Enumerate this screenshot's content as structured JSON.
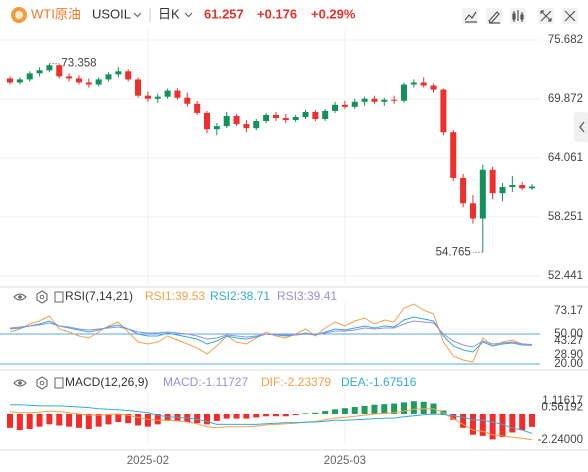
{
  "header": {
    "name": "WTI原油",
    "symbol": "USOIL",
    "period": "日K",
    "change": "+0.176",
    "change_pct": "+0.29%"
  },
  "chart_data": [
    {
      "type": "candlestick",
      "categories": [
        null,
        null,
        null,
        null,
        null,
        null,
        null,
        null,
        null,
        null,
        null,
        null,
        null,
        null,
        "2025-02",
        null,
        null,
        null,
        null,
        null,
        null,
        null,
        null,
        null,
        null,
        null,
        null,
        null,
        null,
        null,
        null,
        null,
        null,
        null,
        "2025-03",
        null,
        null,
        null,
        null,
        null,
        null,
        null,
        null,
        null,
        null,
        null,
        null,
        null,
        null,
        null,
        null,
        null,
        null,
        null
      ],
      "open": [
        71.9,
        71.5,
        71.8,
        72.4,
        72.7,
        73.2,
        72.1,
        71.9,
        71.5,
        71.3,
        71.8,
        72.3,
        72.6,
        71.8,
        70.2,
        69.9,
        70.1,
        70.7,
        70.0,
        69.4,
        68.5,
        66.9,
        67.2,
        68.2,
        67.4,
        67.0,
        67.7,
        68.3,
        68.0,
        67.8,
        68.1,
        68.6,
        67.9,
        68.7,
        69.3,
        69.1,
        69.6,
        69.9,
        69.6,
        69.8,
        69.7,
        71.3,
        71.5,
        71.2,
        70.8,
        66.6,
        62.1,
        59.6,
        58.1,
        62.9,
        60.6,
        61.2,
        61.4,
        61.081
      ],
      "high": [
        72.1,
        72.0,
        72.6,
        73.0,
        73.358,
        73.3,
        72.4,
        72.2,
        71.9,
        72.0,
        72.5,
        73.0,
        72.8,
        72.0,
        70.6,
        70.4,
        70.9,
        70.9,
        70.5,
        69.7,
        68.7,
        67.5,
        68.6,
        68.4,
        67.8,
        67.9,
        68.5,
        68.6,
        68.4,
        68.3,
        68.8,
        68.8,
        68.9,
        69.6,
        69.7,
        69.9,
        70.1,
        70.2,
        70.0,
        70.2,
        71.5,
        71.8,
        72.0,
        71.4,
        70.9,
        66.8,
        62.5,
        60.4,
        63.4,
        63.2,
        61.6,
        62.3,
        61.7,
        61.5
      ],
      "low": [
        71.3,
        71.3,
        71.6,
        72.1,
        72.5,
        71.9,
        71.6,
        71.3,
        71.0,
        71.1,
        71.6,
        72.0,
        71.6,
        70.0,
        69.6,
        69.5,
        69.9,
        69.8,
        69.1,
        68.3,
        66.5,
        66.3,
        67.0,
        67.2,
        66.6,
        66.8,
        67.5,
        67.7,
        67.5,
        67.6,
        67.9,
        67.7,
        67.7,
        68.5,
        68.9,
        68.9,
        69.2,
        69.4,
        69.2,
        69.4,
        69.5,
        71.0,
        71.0,
        70.5,
        66.3,
        61.8,
        59.2,
        57.6,
        54.765,
        60.0,
        59.8,
        60.7,
        60.9,
        60.9
      ],
      "close": [
        71.5,
        71.8,
        72.4,
        72.7,
        73.2,
        72.1,
        71.9,
        71.5,
        71.3,
        71.8,
        72.3,
        72.6,
        71.8,
        70.2,
        69.9,
        70.1,
        70.7,
        70.0,
        69.4,
        68.5,
        66.9,
        67.2,
        68.2,
        67.4,
        67.0,
        67.7,
        68.3,
        68.0,
        67.8,
        68.1,
        68.6,
        67.9,
        68.7,
        69.3,
        69.1,
        69.6,
        69.9,
        69.6,
        69.8,
        69.7,
        71.3,
        71.5,
        71.2,
        70.8,
        66.6,
        62.1,
        59.6,
        58.1,
        62.9,
        60.6,
        61.2,
        61.4,
        61.081,
        61.257
      ],
      "up_color": "#14915a",
      "down_color": "#ee2f2b",
      "ylim": [
        51.55,
        76.67
      ],
      "yticks": [
        75.682,
        69.872,
        64.061,
        58.251,
        52.441
      ],
      "grid": true
    },
    {
      "type": "line",
      "title": "RSI(7,14,21)",
      "series": [
        {
          "name": "RSI1:39.53",
          "color": "#f5a04a",
          "values": [
            52,
            55,
            60,
            63,
            68,
            55,
            52,
            48,
            46,
            52,
            58,
            62,
            52,
            42,
            40,
            42,
            48,
            44,
            40,
            36,
            30,
            38,
            48,
            42,
            40,
            46,
            52,
            48,
            46,
            50,
            55,
            48,
            56,
            62,
            58,
            63,
            66,
            60,
            64,
            62,
            76,
            80,
            74,
            70,
            42,
            28,
            24,
            22,
            46,
            38,
            42,
            44,
            40,
            39.53
          ]
        },
        {
          "name": "RSI2:38.71",
          "color": "#35acd6",
          "values": [
            55,
            56,
            58,
            60,
            63,
            58,
            56,
            54,
            52,
            54,
            57,
            59,
            55,
            50,
            48,
            48,
            51,
            49,
            47,
            45,
            40,
            43,
            48,
            46,
            45,
            47,
            50,
            49,
            48,
            49,
            51,
            49,
            52,
            55,
            54,
            56,
            58,
            56,
            58,
            57,
            64,
            67,
            65,
            63,
            48,
            38,
            34,
            32,
            42,
            38,
            40,
            41,
            39,
            38.71
          ]
        },
        {
          "name": "RSI3:39.41",
          "color": "#9a8fe0",
          "values": [
            56,
            57,
            58,
            59,
            61,
            58,
            57,
            55,
            54,
            55,
            56,
            57,
            55,
            52,
            51,
            51,
            52,
            51,
            50,
            48,
            45,
            46,
            49,
            48,
            47,
            48,
            50,
            49,
            49,
            49,
            50,
            49,
            51,
            53,
            53,
            54,
            56,
            55,
            56,
            56,
            60,
            63,
            62,
            61,
            50,
            43,
            39,
            37,
            43,
            40,
            41,
            42,
            40,
            39.41
          ]
        }
      ],
      "ylim": [
        18,
        82
      ],
      "yticks": [
        73.17,
        {
          "value": 50,
          "label": "50.00"
        },
        43.27,
        {
          "value": 28.9,
          "label": "28.90"
        },
        {
          "value": 20,
          "label": "20.00"
        }
      ],
      "hlines": [
        50,
        20
      ],
      "hline_color": "#5aa9e6"
    },
    {
      "type": "combo",
      "title": "MACD(12,26,9)",
      "series": [
        {
          "name": "MACD:-1.11727",
          "kind": "bar",
          "color": "#9a8fe0",
          "up_color": "#1e9c5c",
          "down_color": "#f52a2a",
          "values": [
            -1.2,
            -1.4,
            -1.3,
            -1.1,
            -0.9,
            -1.0,
            -1.1,
            -1.2,
            -1.3,
            -1.1,
            -0.9,
            -0.7,
            -0.8,
            -1.0,
            -1.1,
            -0.9,
            -0.6,
            -0.6,
            -0.7,
            -0.8,
            -0.9,
            -0.6,
            -0.4,
            -0.4,
            -0.4,
            -0.3,
            -0.2,
            -0.2,
            -0.2,
            -0.1,
            0.05,
            0.1,
            0.25,
            0.4,
            0.5,
            0.6,
            0.7,
            0.8,
            0.85,
            0.9,
            1.0,
            1.1,
            1.05,
            0.9,
            0.3,
            -0.5,
            -1.2,
            -1.8,
            -1.9,
            -2.2,
            -2.0,
            -1.6,
            -1.4,
            -1.11727
          ]
        },
        {
          "name": "DIF:-2.23379",
          "kind": "line",
          "color": "#f5a04a",
          "values": [
            0.2,
            0.1,
            0.1,
            0.15,
            0.25,
            0.2,
            0.1,
            0.0,
            -0.1,
            -0.1,
            -0.05,
            0.0,
            -0.1,
            -0.3,
            -0.45,
            -0.55,
            -0.55,
            -0.6,
            -0.7,
            -0.85,
            -1.1,
            -1.2,
            -1.1,
            -1.1,
            -1.1,
            -1.05,
            -0.95,
            -0.9,
            -0.85,
            -0.8,
            -0.7,
            -0.65,
            -0.5,
            -0.35,
            -0.3,
            -0.2,
            -0.1,
            0.0,
            0.05,
            0.1,
            0.25,
            0.4,
            0.45,
            0.45,
            0.1,
            -0.4,
            -0.9,
            -1.4,
            -1.5,
            -1.8,
            -1.9,
            -2.0,
            -2.1,
            -2.23379
          ]
        },
        {
          "name": "DEA:-1.67516",
          "kind": "line",
          "color": "#35acd6",
          "values": [
            0.8,
            0.8,
            0.75,
            0.7,
            0.7,
            0.7,
            0.65,
            0.6,
            0.55,
            0.45,
            0.4,
            0.35,
            0.3,
            0.2,
            0.1,
            -0.1,
            -0.25,
            -0.3,
            -0.35,
            -0.45,
            -0.65,
            -0.9,
            -0.9,
            -0.9,
            -0.9,
            -0.9,
            -0.85,
            -0.8,
            -0.75,
            -0.75,
            -0.725,
            -0.7,
            -0.625,
            -0.55,
            -0.55,
            -0.5,
            -0.45,
            -0.4,
            -0.375,
            -0.35,
            -0.25,
            -0.15,
            -0.075,
            0.0,
            -0.05,
            -0.15,
            -0.3,
            -0.5,
            -0.55,
            -0.7,
            -0.9,
            -1.2,
            -1.4,
            -1.67516
          ]
        }
      ],
      "ylim": [
        -2.6,
        1.9
      ],
      "yticks": [
        1.11617,
        0.56192,
        {
          "value": -2.24,
          "label": "-2.24000"
        }
      ]
    }
  ]
}
